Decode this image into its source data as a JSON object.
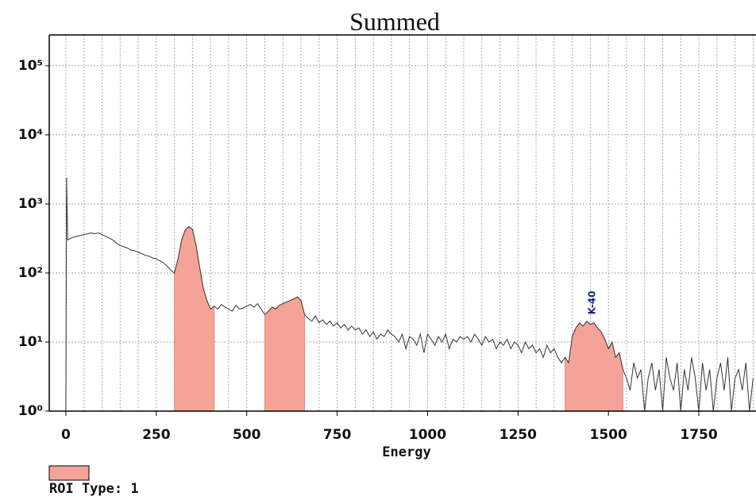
{
  "chart_data": {
    "type": "line",
    "title": "Summed",
    "x_label": "Energy",
    "log_y": true,
    "grid": true,
    "xlim": [
      -46,
      1908
    ],
    "ylim": [
      1,
      280000
    ],
    "xticks": [
      0,
      250,
      500,
      750,
      1000,
      1250,
      1500,
      1750
    ],
    "xgrid": [
      0,
      50,
      100,
      150,
      200,
      250,
      300,
      350,
      400,
      450,
      500,
      550,
      600,
      650,
      700,
      750,
      800,
      850,
      900,
      950,
      1000,
      1050,
      1100,
      1150,
      1200,
      1250,
      1300,
      1350,
      1400,
      1450,
      1500,
      1550,
      1600,
      1650,
      1700,
      1750,
      1800,
      1850,
      1900
    ],
    "yticks": [
      {
        "value": 1,
        "label": "10⁰"
      },
      {
        "value": 10,
        "label": "10¹"
      },
      {
        "value": 100,
        "label": "10²"
      },
      {
        "value": 1000,
        "label": "10³"
      },
      {
        "value": 10000,
        "label": "10⁴"
      },
      {
        "value": 100000,
        "label": "10⁵"
      }
    ],
    "series": [
      {
        "color": "#333333",
        "x": [
          0,
          2,
          5,
          10,
          20,
          30,
          40,
          50,
          60,
          70,
          80,
          90,
          100,
          110,
          120,
          130,
          140,
          150,
          160,
          170,
          180,
          190,
          200,
          210,
          220,
          230,
          240,
          250,
          260,
          270,
          280,
          290,
          300,
          310,
          320,
          330,
          340,
          350,
          360,
          370,
          380,
          390,
          400,
          410,
          420,
          430,
          440,
          450,
          460,
          470,
          480,
          490,
          500,
          510,
          520,
          530,
          540,
          550,
          560,
          570,
          580,
          590,
          600,
          610,
          620,
          630,
          640,
          650,
          660,
          670,
          680,
          690,
          700,
          710,
          720,
          730,
          740,
          750,
          760,
          770,
          780,
          790,
          800,
          810,
          820,
          830,
          840,
          850,
          860,
          870,
          880,
          890,
          900,
          910,
          920,
          930,
          940,
          950,
          960,
          970,
          980,
          990,
          1000,
          1010,
          1020,
          1030,
          1040,
          1050,
          1060,
          1070,
          1080,
          1090,
          1100,
          1110,
          1120,
          1130,
          1140,
          1150,
          1160,
          1170,
          1180,
          1190,
          1200,
          1210,
          1220,
          1230,
          1240,
          1250,
          1260,
          1270,
          1280,
          1290,
          1300,
          1310,
          1320,
          1330,
          1340,
          1350,
          1360,
          1370,
          1380,
          1390,
          1400,
          1410,
          1420,
          1430,
          1440,
          1450,
          1460,
          1470,
          1480,
          1490,
          1500,
          1510,
          1520,
          1530,
          1540,
          1550,
          1560,
          1570,
          1580,
          1590,
          1600,
          1610,
          1620,
          1630,
          1640,
          1650,
          1660,
          1670,
          1680,
          1690,
          1700,
          1710,
          1720,
          1730,
          1740,
          1750,
          1760,
          1770,
          1780,
          1790,
          1800,
          1810,
          1820,
          1830,
          1840,
          1850,
          1860,
          1870,
          1880,
          1890,
          1900
        ],
        "values": [
          1,
          2400,
          300,
          310,
          330,
          340,
          350,
          360,
          370,
          380,
          370,
          380,
          360,
          340,
          320,
          300,
          270,
          250,
          240,
          230,
          215,
          210,
          200,
          190,
          180,
          175,
          165,
          160,
          150,
          140,
          125,
          110,
          100,
          160,
          300,
          420,
          470,
          430,
          250,
          120,
          60,
          40,
          30,
          33,
          30,
          35,
          32,
          30,
          28,
          34,
          30,
          31,
          33,
          35,
          32,
          36,
          30,
          25,
          28,
          32,
          30,
          34,
          36,
          38,
          40,
          42,
          45,
          40,
          25,
          22,
          20,
          24,
          19,
          21,
          18,
          20,
          17,
          19,
          16,
          18,
          15,
          17,
          15,
          16,
          13,
          15,
          12,
          14,
          11,
          13,
          12,
          15,
          13,
          12,
          10,
          13,
          8,
          12,
          11,
          9,
          13,
          7,
          13,
          11,
          9,
          12,
          10,
          13,
          8,
          11,
          10,
          12,
          11,
          12,
          10,
          13,
          11,
          9,
          12,
          10,
          11,
          8,
          10,
          9,
          11,
          8,
          10,
          9,
          7,
          10,
          8,
          9,
          7,
          8,
          6,
          9,
          7,
          8,
          6,
          5,
          6,
          5,
          12,
          16,
          19,
          17,
          20,
          18,
          19,
          16,
          14,
          11,
          8,
          10,
          6,
          7,
          4,
          3,
          2,
          5,
          3,
          4,
          1,
          3,
          5,
          2,
          4,
          1,
          6,
          3,
          2,
          5,
          1,
          4,
          2,
          6,
          3,
          1,
          5,
          2,
          4,
          1,
          3,
          5,
          2,
          6,
          1,
          3,
          4,
          2,
          5,
          1,
          3
        ]
      }
    ],
    "rois": [
      {
        "start": 300,
        "end": 410
      },
      {
        "start": 550,
        "end": 660
      },
      {
        "start": 1380,
        "end": 1540
      }
    ],
    "roi_color": "#f5a398",
    "annotations": [
      {
        "text": "K-40",
        "x": 1455,
        "y": 25
      }
    ],
    "legend": {
      "label": "ROI Type: 1"
    }
  }
}
